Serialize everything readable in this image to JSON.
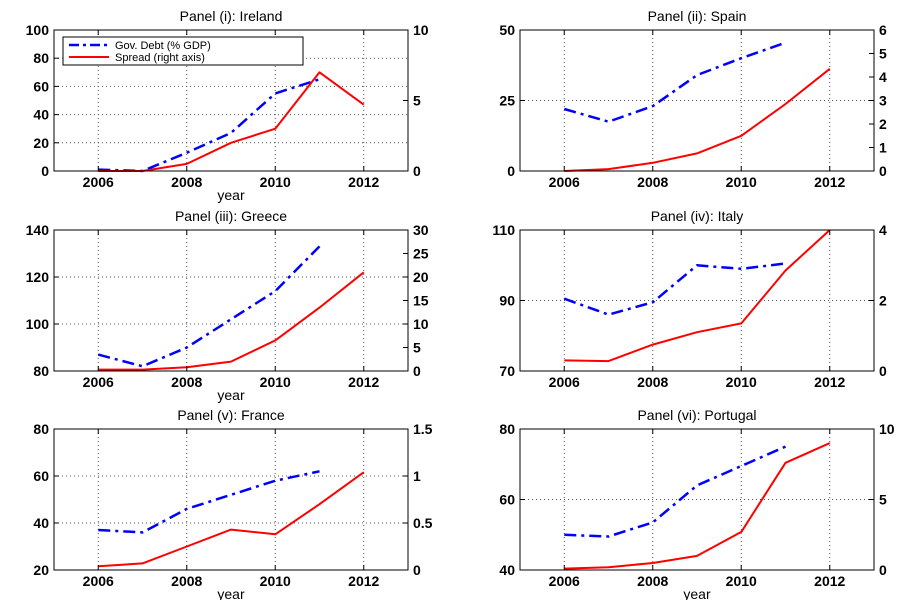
{
  "chart_data": [
    {
      "type": "line",
      "title": "Panel (i): Ireland",
      "xlabel": "year",
      "xlim": [
        2005,
        2013
      ],
      "xticks": [
        2006,
        2008,
        2010,
        2012
      ],
      "ylim": [
        0,
        100
      ],
      "yticks": [
        0,
        20,
        40,
        60,
        80,
        100
      ],
      "y2lim": [
        0,
        10
      ],
      "y2ticks": [
        0,
        5,
        10
      ],
      "grid": true,
      "legend": "top-left",
      "series": [
        {
          "name": "Gov. Debt (% GDP)",
          "axis": "left",
          "color": "#0000ff",
          "style": "dashdot",
          "x": [
            2006,
            2007,
            2008,
            2009,
            2010,
            2011
          ],
          "y": [
            1,
            0,
            13,
            27,
            55,
            65
          ]
        },
        {
          "name": "Spread (right axis)",
          "axis": "right",
          "color": "#ff0000",
          "style": "solid",
          "x": [
            2006,
            2007,
            2008,
            2009,
            2010,
            2011,
            2012
          ],
          "y": [
            0,
            0,
            0.5,
            2,
            3,
            7,
            4.7
          ]
        }
      ]
    },
    {
      "type": "line",
      "title": "Panel (ii): Spain",
      "xlabel": "",
      "xlim": [
        2005,
        2013
      ],
      "xticks": [
        2006,
        2008,
        2010,
        2012
      ],
      "ylim": [
        0,
        50
      ],
      "yticks": [
        0,
        25,
        50
      ],
      "y2lim": [
        0,
        6
      ],
      "y2ticks": [
        0,
        1,
        2,
        3,
        4,
        5,
        6
      ],
      "grid": true,
      "series": [
        {
          "axis": "left",
          "color": "#0000ff",
          "style": "dashdot",
          "x": [
            2006,
            2007,
            2008,
            2009,
            2010,
            2011
          ],
          "y": [
            22,
            17.5,
            23,
            34,
            40,
            45.5
          ]
        },
        {
          "axis": "right",
          "color": "#ff0000",
          "style": "solid",
          "x": [
            2006,
            2007,
            2008,
            2009,
            2010,
            2011,
            2012
          ],
          "y": [
            0,
            0.08,
            0.35,
            0.75,
            1.5,
            2.85,
            4.35
          ]
        }
      ]
    },
    {
      "type": "line",
      "title": "Panel (iii): Greece",
      "xlabel": "year",
      "xlim": [
        2005,
        2013
      ],
      "xticks": [
        2006,
        2008,
        2010,
        2012
      ],
      "ylim": [
        80,
        140
      ],
      "yticks": [
        80,
        100,
        120,
        140
      ],
      "y2lim": [
        0,
        30
      ],
      "y2ticks": [
        0,
        5,
        10,
        15,
        20,
        25,
        30
      ],
      "grid": true,
      "series": [
        {
          "axis": "left",
          "color": "#0000ff",
          "style": "dashdot",
          "x": [
            2006,
            2007,
            2008,
            2009,
            2010,
            2011
          ],
          "y": [
            87,
            82,
            90,
            102,
            114,
            133
          ]
        },
        {
          "axis": "right",
          "color": "#ff0000",
          "style": "solid",
          "x": [
            2006,
            2007,
            2008,
            2009,
            2010,
            2011,
            2012
          ],
          "y": [
            0.3,
            0.3,
            0.8,
            2,
            6.5,
            13.5,
            21
          ]
        }
      ]
    },
    {
      "type": "line",
      "title": "Panel (iv): Italy",
      "xlabel": "",
      "xlim": [
        2005,
        2013
      ],
      "xticks": [
        2006,
        2008,
        2010,
        2012
      ],
      "ylim": [
        70,
        110
      ],
      "yticks": [
        70,
        90,
        110
      ],
      "y2lim": [
        0,
        4
      ],
      "y2ticks": [
        0,
        2,
        4
      ],
      "grid": true,
      "series": [
        {
          "axis": "left",
          "color": "#0000ff",
          "style": "dashdot",
          "x": [
            2006,
            2007,
            2008,
            2009,
            2010,
            2011
          ],
          "y": [
            90.5,
            86,
            89.5,
            100,
            99,
            100.5
          ]
        },
        {
          "axis": "right",
          "color": "#ff0000",
          "style": "solid",
          "x": [
            2006,
            2007,
            2008,
            2009,
            2010,
            2011,
            2012
          ],
          "y": [
            0.3,
            0.28,
            0.75,
            1.1,
            1.35,
            2.85,
            4
          ]
        }
      ]
    },
    {
      "type": "line",
      "title": "Panel (v): France",
      "xlabel": "year",
      "xlim": [
        2005,
        2013
      ],
      "xticks": [
        2006,
        2008,
        2010,
        2012
      ],
      "ylim": [
        20,
        80
      ],
      "yticks": [
        20,
        40,
        60,
        80
      ],
      "y2lim": [
        0,
        1.5
      ],
      "y2ticks": [
        0,
        0.5,
        1,
        1.5
      ],
      "grid": true,
      "series": [
        {
          "axis": "left",
          "color": "#0000ff",
          "style": "dashdot",
          "x": [
            2006,
            2007,
            2008,
            2009,
            2010,
            2011
          ],
          "y": [
            37,
            36,
            46,
            52,
            58,
            62
          ]
        },
        {
          "axis": "right",
          "color": "#ff0000",
          "style": "solid",
          "x": [
            2006,
            2007,
            2008,
            2009,
            2010,
            2011,
            2012
          ],
          "y": [
            0.04,
            0.07,
            0.25,
            0.43,
            0.38,
            0.7,
            1.04
          ]
        }
      ]
    },
    {
      "type": "line",
      "title": "Panel (vi): Portugal",
      "xlabel": "year",
      "xlim": [
        2005,
        2013
      ],
      "xticks": [
        2006,
        2008,
        2010,
        2012
      ],
      "ylim": [
        40,
        80
      ],
      "yticks": [
        40,
        60,
        80
      ],
      "y2lim": [
        0,
        10
      ],
      "y2ticks": [
        0,
        5,
        10
      ],
      "grid": true,
      "series": [
        {
          "axis": "left",
          "color": "#0000ff",
          "style": "dashdot",
          "x": [
            2006,
            2007,
            2008,
            2009,
            2010,
            2011
          ],
          "y": [
            50,
            49.5,
            53.5,
            64,
            69.5,
            75
          ]
        },
        {
          "axis": "right",
          "color": "#ff0000",
          "style": "solid",
          "x": [
            2006,
            2007,
            2008,
            2009,
            2010,
            2011,
            2012
          ],
          "y": [
            0.1,
            0.2,
            0.5,
            1,
            2.7,
            7.6,
            9
          ]
        }
      ]
    }
  ]
}
